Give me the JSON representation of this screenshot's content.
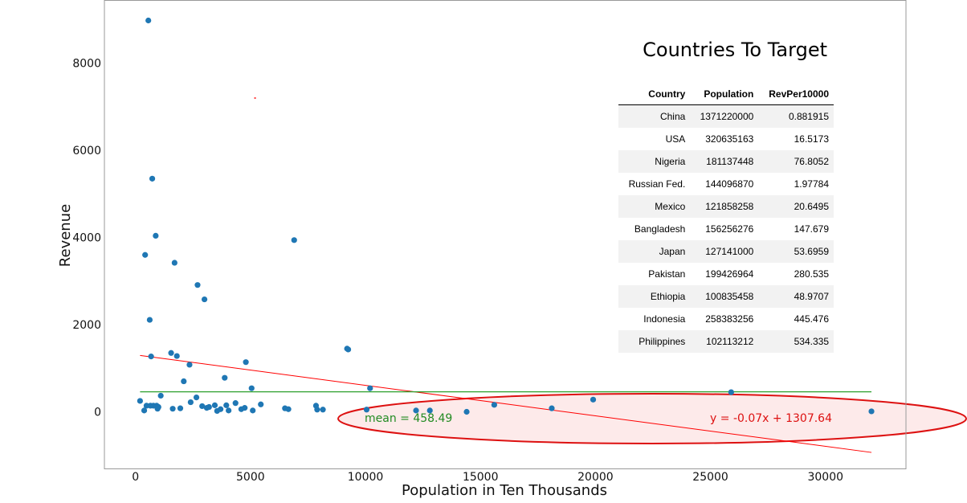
{
  "chart_data": {
    "type": "scatter",
    "xlabel": "Population in Ten Thousands",
    "ylabel": "Revenue",
    "xlim": [
      -1350,
      33500
    ],
    "ylim": [
      -1300,
      9450
    ],
    "x_ticks": [
      0,
      5000,
      10000,
      15000,
      20000,
      25000,
      30000
    ],
    "y_ticks": [
      0,
      2000,
      4000,
      6000,
      8000
    ],
    "colors": {
      "points": "#1f77b4",
      "trend": "#ff0000",
      "mean": "#2ca02c",
      "ellipse": "#dd1111",
      "ellipse_fill": "#fdeaea",
      "mean_text": "#228B22"
    },
    "points": [
      [
        200,
        250
      ],
      [
        380,
        30
      ],
      [
        420,
        3600
      ],
      [
        480,
        140
      ],
      [
        560,
        8980
      ],
      [
        620,
        2110
      ],
      [
        650,
        140
      ],
      [
        680,
        1270
      ],
      [
        730,
        5350
      ],
      [
        780,
        140
      ],
      [
        880,
        4040
      ],
      [
        920,
        140
      ],
      [
        960,
        70
      ],
      [
        1000,
        110
      ],
      [
        1100,
        370
      ],
      [
        1550,
        1350
      ],
      [
        1620,
        70
      ],
      [
        1700,
        3420
      ],
      [
        1800,
        1280
      ],
      [
        1950,
        80
      ],
      [
        2100,
        700
      ],
      [
        2350,
        1080
      ],
      [
        2400,
        220
      ],
      [
        2650,
        330
      ],
      [
        2700,
        2910
      ],
      [
        2900,
        130
      ],
      [
        3000,
        2580
      ],
      [
        3100,
        90
      ],
      [
        3200,
        110
      ],
      [
        3450,
        150
      ],
      [
        3550,
        20
      ],
      [
        3700,
        60
      ],
      [
        3880,
        780
      ],
      [
        3950,
        150
      ],
      [
        4050,
        30
      ],
      [
        4350,
        200
      ],
      [
        4600,
        60
      ],
      [
        4750,
        90
      ],
      [
        4800,
        1140
      ],
      [
        5050,
        540
      ],
      [
        5100,
        30
      ],
      [
        5450,
        170
      ],
      [
        6500,
        80
      ],
      [
        6650,
        60
      ],
      [
        6900,
        3940
      ],
      [
        7850,
        140
      ],
      [
        7900,
        50
      ],
      [
        8150,
        50
      ],
      [
        9200,
        1450
      ],
      [
        9250,
        1430
      ],
      [
        10050,
        50
      ],
      [
        10200,
        540
      ],
      [
        12200,
        30
      ],
      [
        12800,
        30
      ],
      [
        14400,
        0
      ],
      [
        15600,
        160
      ],
      [
        18100,
        80
      ],
      [
        19900,
        280
      ],
      [
        25900,
        450
      ],
      [
        32000,
        10
      ]
    ],
    "mean": 458.49,
    "trendline": {
      "slope": -0.07,
      "intercept": 1307.64,
      "x_range": [
        200,
        32000
      ]
    },
    "annotations": {
      "mean_label": "mean = 458.49",
      "trend_label": "y = -0.07x + 1307.64"
    },
    "stray_mark": [
      5200,
      7200
    ]
  },
  "panel": {
    "title": "Countries To Target",
    "columns": [
      "Country",
      "Population",
      "RevPer10000"
    ],
    "rows": [
      [
        "China",
        "1371220000",
        "0.881915"
      ],
      [
        "USA",
        "320635163",
        "16.5173"
      ],
      [
        "Nigeria",
        "181137448",
        "76.8052"
      ],
      [
        "Russian Fed.",
        "144096870",
        "1.97784"
      ],
      [
        "Mexico",
        "121858258",
        "20.6495"
      ],
      [
        "Bangladesh",
        "156256276",
        "147.679"
      ],
      [
        "Japan",
        "127141000",
        "53.6959"
      ],
      [
        "Pakistan",
        "199426964",
        "280.535"
      ],
      [
        "Ethiopia",
        "100835458",
        "48.9707"
      ],
      [
        "Indonesia",
        "258383256",
        "445.476"
      ],
      [
        "Philippines",
        "102113212",
        "534.335"
      ]
    ]
  }
}
